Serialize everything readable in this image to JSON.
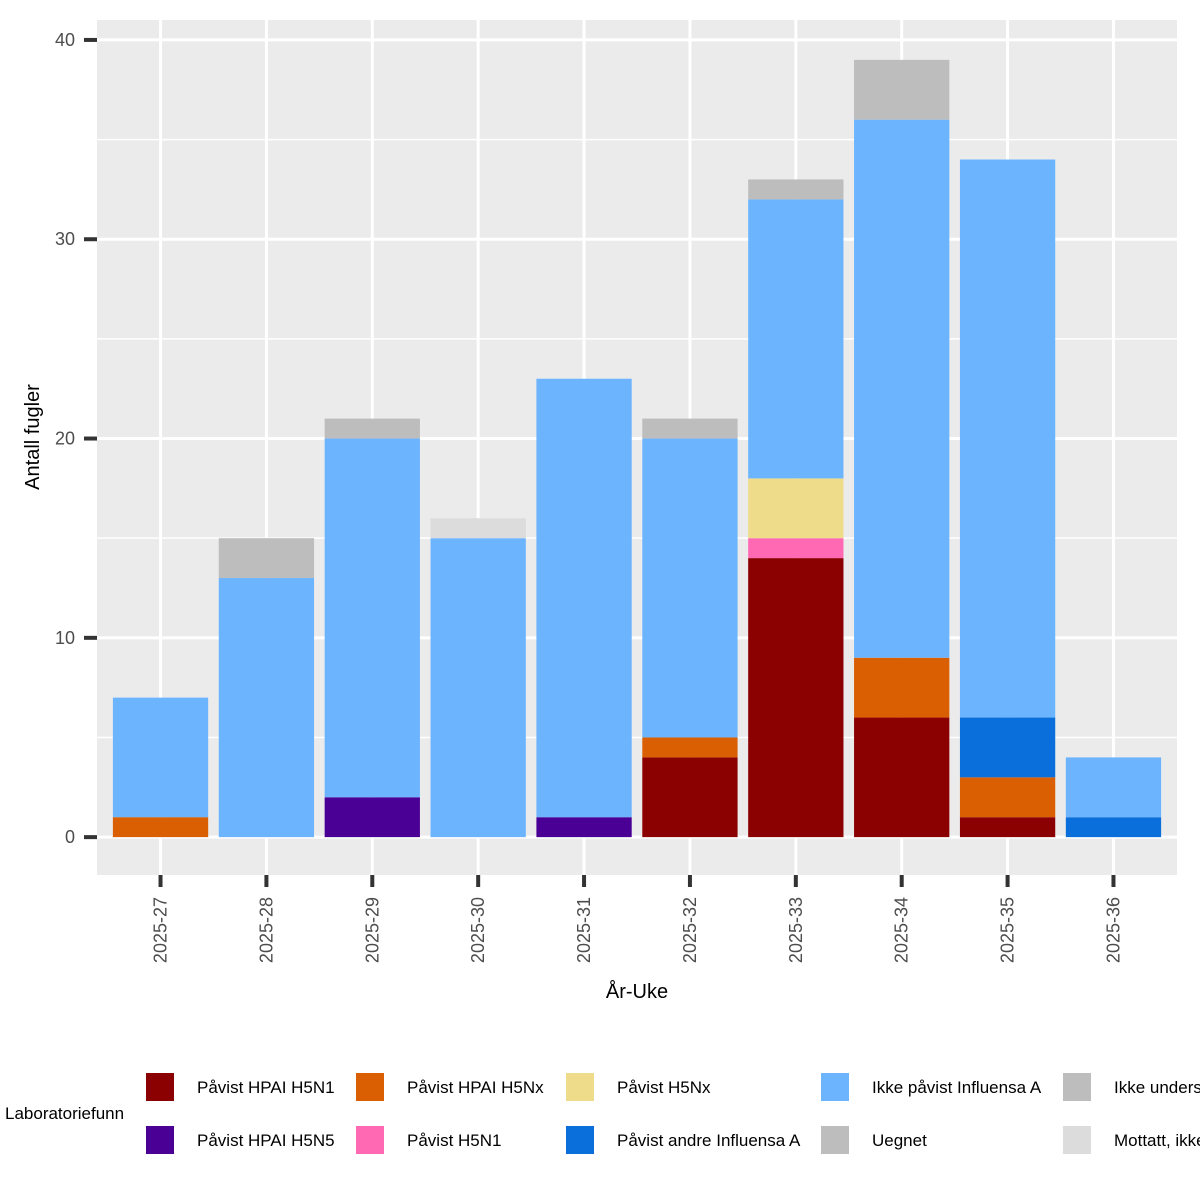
{
  "chart_data": {
    "type": "bar",
    "stacked": true,
    "xlabel": "År-Uke",
    "ylabel": "Antall fugler",
    "ylim": [
      -1.9,
      41
    ],
    "yticks": [
      0,
      10,
      20,
      30,
      40
    ],
    "grid": true,
    "legend_position": "bottom",
    "legend_title": "Laboratoriefunn",
    "categories": [
      "2025-27",
      "2025-28",
      "2025-29",
      "2025-30",
      "2025-31",
      "2025-32",
      "2025-33",
      "2025-34",
      "2025-35",
      "2025-36"
    ],
    "series": [
      {
        "name": "Påvist HPAI H5N1",
        "color": "#8b0000",
        "values": [
          0,
          0,
          0,
          0,
          0,
          4,
          14,
          6,
          1,
          0
        ]
      },
      {
        "name": "Påvist HPAI H5N5",
        "color": "#4b0095",
        "values": [
          0,
          0,
          2,
          0,
          1,
          0,
          0,
          0,
          0,
          0
        ]
      },
      {
        "name": "Påvist HPAI H5Nx",
        "color": "#d95f02",
        "values": [
          1,
          0,
          0,
          0,
          0,
          1,
          0,
          3,
          2,
          0
        ]
      },
      {
        "name": "Påvist H5N1",
        "color": "#ff69b4",
        "values": [
          0,
          0,
          0,
          0,
          0,
          0,
          1,
          0,
          0,
          0
        ]
      },
      {
        "name": "Påvist H5Nx",
        "color": "#eedc8a",
        "values": [
          0,
          0,
          0,
          0,
          0,
          0,
          3,
          0,
          0,
          0
        ]
      },
      {
        "name": "Påvist andre Influensa A",
        "color": "#0a6fdb",
        "values": [
          0,
          0,
          0,
          0,
          0,
          0,
          0,
          0,
          3,
          1
        ]
      },
      {
        "name": "Ikke påvist Influensa A",
        "color": "#6db4ff",
        "values": [
          6,
          13,
          18,
          15,
          22,
          15,
          14,
          27,
          28,
          3
        ]
      },
      {
        "name": "Uegnet",
        "color": "#bdbdbd",
        "values": [
          0,
          2,
          1,
          0,
          0,
          1,
          1,
          3,
          0,
          0
        ]
      },
      {
        "name": "Ikke undersøkt",
        "color": "#bdbdbd",
        "values": [
          0,
          0,
          0,
          0,
          0,
          0,
          0,
          0,
          0,
          0
        ]
      },
      {
        "name": "Mottatt, ikke undersøkt",
        "color": "#dcdcdc",
        "values": [
          0,
          0,
          0,
          1,
          0,
          0,
          0,
          0,
          0,
          0
        ]
      }
    ],
    "legend_items": [
      {
        "label": "Påvist HPAI H5N1",
        "color": "#8b0000"
      },
      {
        "label": "Påvist HPAI H5N5",
        "color": "#4b0095"
      },
      {
        "label": "Påvist HPAI H5Nx",
        "color": "#d95f02"
      },
      {
        "label": "Påvist H5N1",
        "color": "#ff69b4"
      },
      {
        "label": "Påvist H5Nx",
        "color": "#eedc8a"
      },
      {
        "label": "Påvist andre Influensa A",
        "color": "#0a6fdb"
      },
      {
        "label": "Ikke påvist Influensa A",
        "color": "#6db4ff"
      },
      {
        "label": "Uegnet",
        "color": "#bdbdbd"
      },
      {
        "label": "Ikke undersøkt",
        "color": "#bdbdbd"
      },
      {
        "label": "Mottatt, ikke undersøkt",
        "color": "#dcdcdc"
      }
    ]
  }
}
